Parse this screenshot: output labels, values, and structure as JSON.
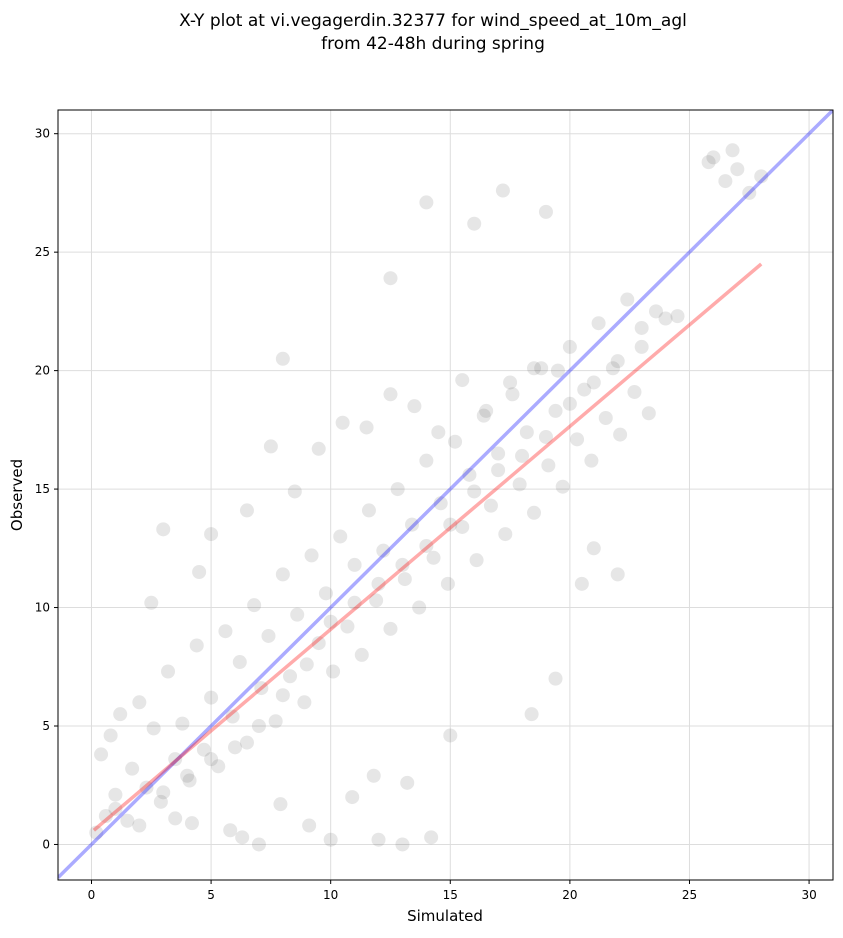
{
  "chart_data": {
    "type": "scatter",
    "title_line1": "X-Y plot at vi.vegagerdin.32377 for wind_speed_at_10m_agl",
    "title_line2": "from 42-48h during spring",
    "xlabel": "Simulated",
    "ylabel": "Observed",
    "xlim": [
      -1.4,
      31.0
    ],
    "ylim": [
      -1.5,
      31.0
    ],
    "xticks": [
      0,
      5,
      10,
      15,
      20,
      25,
      30
    ],
    "yticks": [
      0,
      5,
      10,
      15,
      20,
      25,
      30
    ],
    "grid": true,
    "point_color": "#333333",
    "point_alpha": 0.12,
    "series": [
      {
        "type": "scatter",
        "x": [
          0.2,
          0.4,
          0.6,
          0.8,
          1.0,
          1.2,
          1.5,
          1.7,
          2.0,
          2.3,
          2.6,
          2.9,
          3.2,
          3.5,
          3.8,
          4.1,
          4.4,
          4.7,
          5.0,
          5.3,
          5.6,
          5.9,
          6.2,
          6.5,
          6.8,
          7.1,
          7.4,
          7.7,
          8.0,
          8.3,
          8.6,
          8.9,
          9.2,
          9.5,
          9.8,
          10.1,
          10.4,
          10.7,
          11.0,
          11.3,
          11.6,
          11.9,
          12.2,
          12.5,
          12.8,
          13.1,
          13.4,
          13.7,
          14.0,
          14.3,
          14.6,
          14.9,
          15.2,
          15.5,
          15.8,
          16.1,
          16.4,
          16.7,
          17.0,
          17.3,
          17.6,
          17.9,
          18.2,
          18.5,
          18.8,
          19.1,
          19.4,
          19.7,
          20.0,
          20.3,
          20.6,
          20.9,
          21.2,
          21.5,
          21.8,
          22.1,
          22.4,
          22.7,
          23.0,
          23.3,
          23.6,
          24.0,
          26.0,
          26.5,
          27.0,
          27.5,
          28.0,
          1.0,
          2.0,
          3.0,
          4.0,
          5.0,
          6.0,
          7.0,
          8.0,
          9.0,
          10.0,
          11.0,
          12.0,
          13.0,
          14.0,
          15.0,
          16.0,
          17.0,
          18.0,
          19.0,
          20.0,
          21.0,
          22.0,
          23.0,
          14.0,
          8.0,
          12.5,
          16.0,
          17.2,
          19.0,
          3.0,
          5.0,
          2.5,
          4.5,
          6.5,
          7.5,
          8.5,
          9.5,
          10.5,
          11.5,
          12.5,
          13.5,
          14.5,
          15.5,
          16.5,
          17.5,
          18.5,
          19.5,
          3.5,
          4.2,
          5.8,
          6.3,
          7.9,
          9.1,
          10.9,
          11.8,
          13.2,
          12.0,
          13.0,
          14.2,
          18.4,
          19.4,
          22.0,
          20.5,
          21.0,
          7.0,
          10.0,
          15.0,
          24.5,
          26.8,
          25.8
        ],
        "y": [
          0.5,
          3.8,
          1.2,
          4.6,
          2.1,
          5.5,
          1.0,
          3.2,
          6.0,
          2.4,
          4.9,
          1.8,
          7.3,
          3.6,
          5.1,
          2.7,
          8.4,
          4.0,
          6.2,
          3.3,
          9.0,
          5.4,
          7.7,
          4.3,
          10.1,
          6.6,
          8.8,
          5.2,
          11.4,
          7.1,
          9.7,
          6.0,
          12.2,
          8.5,
          10.6,
          7.3,
          13.0,
          9.2,
          11.8,
          8.0,
          14.1,
          10.3,
          12.4,
          9.1,
          15.0,
          11.2,
          13.5,
          10.0,
          16.2,
          12.1,
          14.4,
          11.0,
          17.0,
          13.4,
          15.6,
          12.0,
          18.1,
          14.3,
          16.5,
          13.1,
          19.0,
          15.2,
          17.4,
          14.0,
          20.1,
          16.0,
          18.3,
          15.1,
          21.0,
          17.1,
          19.2,
          16.2,
          22.0,
          18.0,
          20.1,
          17.3,
          23.0,
          19.1,
          21.0,
          18.2,
          22.5,
          22.2,
          29.0,
          28.0,
          28.5,
          27.5,
          28.2,
          1.5,
          0.8,
          2.2,
          2.9,
          3.6,
          4.1,
          5.0,
          6.3,
          7.6,
          9.4,
          10.2,
          11.0,
          11.8,
          12.6,
          13.5,
          14.9,
          15.8,
          16.4,
          17.2,
          18.6,
          19.5,
          20.4,
          21.8,
          27.1,
          20.5,
          23.9,
          26.2,
          27.6,
          26.7,
          13.3,
          13.1,
          10.2,
          11.5,
          14.1,
          16.8,
          14.9,
          16.7,
          17.8,
          17.6,
          19.0,
          18.5,
          17.4,
          19.6,
          18.3,
          19.5,
          20.1,
          20.0,
          1.1,
          0.9,
          0.6,
          0.3,
          1.7,
          0.8,
          2.0,
          2.9,
          2.6,
          0.2,
          0.0,
          0.3,
          5.5,
          7.0,
          11.4,
          11.0,
          12.5,
          0.0,
          0.2,
          4.6,
          22.3,
          29.3,
          28.8
        ]
      },
      {
        "type": "line",
        "x": [
          -1.4,
          31.0
        ],
        "y": [
          -1.4,
          31.0
        ],
        "color": "#0000ff",
        "alpha": 0.33,
        "linewidth": 3.5
      },
      {
        "type": "line",
        "x": [
          0.1,
          28.0
        ],
        "y": [
          0.6,
          24.5
        ],
        "color": "#ff0000",
        "alpha": 0.33,
        "linewidth": 3.5
      }
    ]
  }
}
